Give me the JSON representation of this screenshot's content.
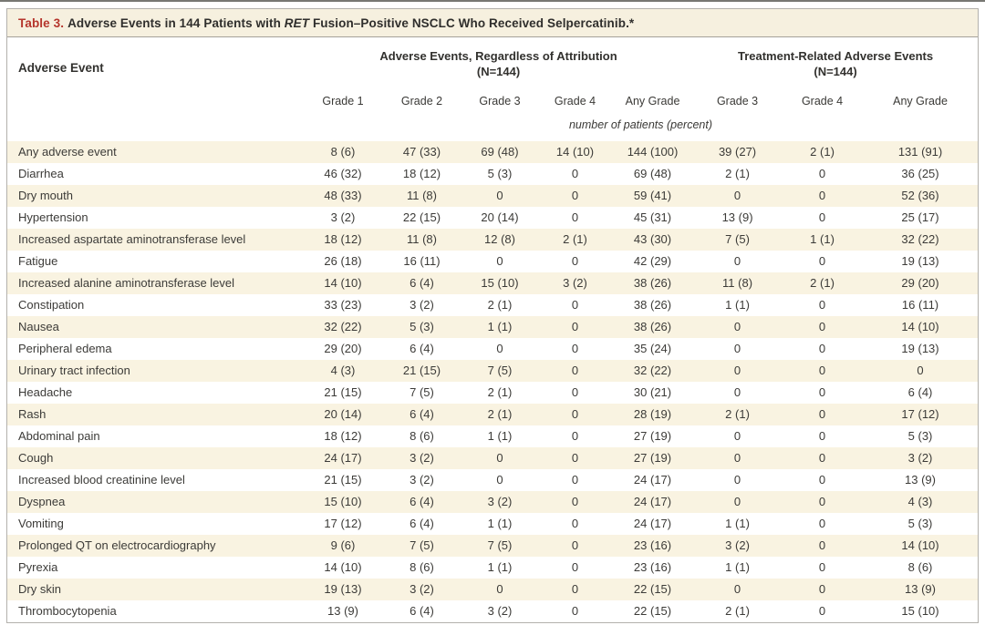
{
  "colors": {
    "accent_red": "#b5352c",
    "row_shade": "#f9f3e1",
    "title_bar_bg": "#f6f0df",
    "text": "#3c3b38",
    "border": "#b3b1ac"
  },
  "table": {
    "title": {
      "label": "Table 3.",
      "before_gene": "Adverse Events in 144 Patients with ",
      "gene": "RET",
      "after_gene": " Fusion–Positive NSCLC Who Received Selpercatinib.",
      "footnote_marker": "*"
    },
    "row_header": "Adverse Event",
    "groups": [
      {
        "label": "Adverse Events, Regardless of Attribution",
        "n": "(N=144)"
      },
      {
        "label": "Treatment-Related Adverse Events",
        "n": "(N=144)"
      }
    ],
    "grade_columns": [
      "Grade 1",
      "Grade 2",
      "Grade 3",
      "Grade 4",
      "Any Grade",
      "Grade 3",
      "Grade 4",
      "Any Grade"
    ],
    "unit_note": "number of patients (percent)",
    "rows": [
      {
        "label": "Any adverse event",
        "values": [
          "8 (6)",
          "47 (33)",
          "69 (48)",
          "14 (10)",
          "144 (100)",
          "39 (27)",
          "2 (1)",
          "131 (91)"
        ]
      },
      {
        "label": "Diarrhea",
        "values": [
          "46 (32)",
          "18 (12)",
          "5 (3)",
          "0",
          "69 (48)",
          "2 (1)",
          "0",
          "36 (25)"
        ]
      },
      {
        "label": "Dry mouth",
        "values": [
          "48 (33)",
          "11 (8)",
          "0",
          "0",
          "59 (41)",
          "0",
          "0",
          "52 (36)"
        ]
      },
      {
        "label": "Hypertension",
        "values": [
          "3 (2)",
          "22 (15)",
          "20 (14)",
          "0",
          "45 (31)",
          "13 (9)",
          "0",
          "25 (17)"
        ]
      },
      {
        "label": "Increased aspartate aminotransferase level",
        "values": [
          "18 (12)",
          "11 (8)",
          "12 (8)",
          "2 (1)",
          "43 (30)",
          "7 (5)",
          "1 (1)",
          "32 (22)"
        ]
      },
      {
        "label": "Fatigue",
        "values": [
          "26 (18)",
          "16 (11)",
          "0",
          "0",
          "42 (29)",
          "0",
          "0",
          "19 (13)"
        ]
      },
      {
        "label": "Increased alanine aminotransferase level",
        "values": [
          "14 (10)",
          "6 (4)",
          "15 (10)",
          "3 (2)",
          "38 (26)",
          "11 (8)",
          "2 (1)",
          "29 (20)"
        ]
      },
      {
        "label": "Constipation",
        "values": [
          "33 (23)",
          "3 (2)",
          "2 (1)",
          "0",
          "38 (26)",
          "1 (1)",
          "0",
          "16 (11)"
        ]
      },
      {
        "label": "Nausea",
        "values": [
          "32 (22)",
          "5 (3)",
          "1 (1)",
          "0",
          "38 (26)",
          "0",
          "0",
          "14 (10)"
        ]
      },
      {
        "label": "Peripheral edema",
        "values": [
          "29 (20)",
          "6 (4)",
          "0",
          "0",
          "35 (24)",
          "0",
          "0",
          "19 (13)"
        ]
      },
      {
        "label": "Urinary tract infection",
        "values": [
          "4 (3)",
          "21 (15)",
          "7 (5)",
          "0",
          "32 (22)",
          "0",
          "0",
          "0"
        ]
      },
      {
        "label": "Headache",
        "values": [
          "21 (15)",
          "7 (5)",
          "2 (1)",
          "0",
          "30 (21)",
          "0",
          "0",
          "6 (4)"
        ]
      },
      {
        "label": "Rash",
        "values": [
          "20 (14)",
          "6 (4)",
          "2 (1)",
          "0",
          "28 (19)",
          "2 (1)",
          "0",
          "17 (12)"
        ]
      },
      {
        "label": "Abdominal pain",
        "values": [
          "18 (12)",
          "8 (6)",
          "1 (1)",
          "0",
          "27 (19)",
          "0",
          "0",
          "5 (3)"
        ]
      },
      {
        "label": "Cough",
        "values": [
          "24 (17)",
          "3 (2)",
          "0",
          "0",
          "27 (19)",
          "0",
          "0",
          "3 (2)"
        ]
      },
      {
        "label": "Increased blood creatinine level",
        "values": [
          "21 (15)",
          "3 (2)",
          "0",
          "0",
          "24 (17)",
          "0",
          "0",
          "13 (9)"
        ]
      },
      {
        "label": "Dyspnea",
        "values": [
          "15 (10)",
          "6 (4)",
          "3 (2)",
          "0",
          "24 (17)",
          "0",
          "0",
          "4 (3)"
        ]
      },
      {
        "label": "Vomiting",
        "values": [
          "17 (12)",
          "6 (4)",
          "1 (1)",
          "0",
          "24 (17)",
          "1 (1)",
          "0",
          "5 (3)"
        ]
      },
      {
        "label": "Prolonged QT on electrocardiography",
        "values": [
          "9 (6)",
          "7 (5)",
          "7 (5)",
          "0",
          "23 (16)",
          "3 (2)",
          "0",
          "14 (10)"
        ]
      },
      {
        "label": "Pyrexia",
        "values": [
          "14 (10)",
          "8 (6)",
          "1 (1)",
          "0",
          "23 (16)",
          "1 (1)",
          "0",
          "8 (6)"
        ]
      },
      {
        "label": "Dry skin",
        "values": [
          "19 (13)",
          "3 (2)",
          "0",
          "0",
          "22 (15)",
          "0",
          "0",
          "13 (9)"
        ]
      },
      {
        "label": "Thrombocytopenia",
        "values": [
          "13 (9)",
          "6 (4)",
          "3 (2)",
          "0",
          "22 (15)",
          "2 (1)",
          "0",
          "15 (10)"
        ]
      }
    ]
  }
}
